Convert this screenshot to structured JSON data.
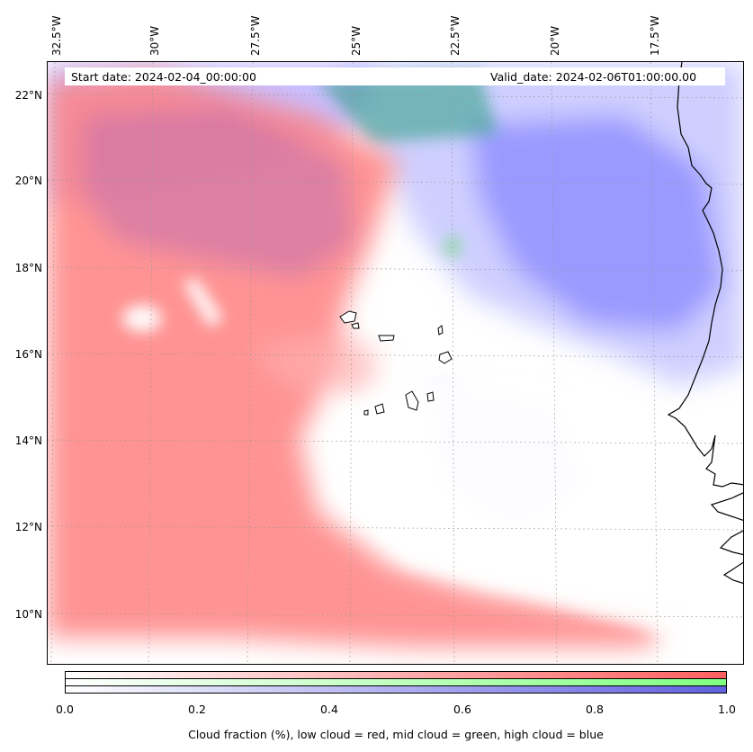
{
  "map": {
    "start_date": "Start date: 2024-02-04_00:00:00",
    "valid_date": "Valid_date: 2024-02-06T01:00:00.00",
    "lon_labels": [
      "32.5°W",
      "30°W",
      "27.5°W",
      "25°W",
      "22.5°W",
      "20°W",
      "17.5°W"
    ],
    "lat_labels": [
      "22°N",
      "20°N",
      "18°N",
      "16°N",
      "14°N",
      "12°N",
      "10°N"
    ],
    "layers": [
      {
        "name": "low cloud",
        "color": "#ff6060"
      },
      {
        "name": "mid cloud",
        "color": "#80ff80"
      },
      {
        "name": "high cloud",
        "color": "#6060e0"
      }
    ]
  },
  "colorbar": {
    "ticks": [
      "0.0",
      "0.2",
      "0.4",
      "0.6",
      "0.8",
      "1.0"
    ],
    "caption": "Cloud fraction (%), low cloud = red, mid cloud = green, high cloud = blue"
  }
}
